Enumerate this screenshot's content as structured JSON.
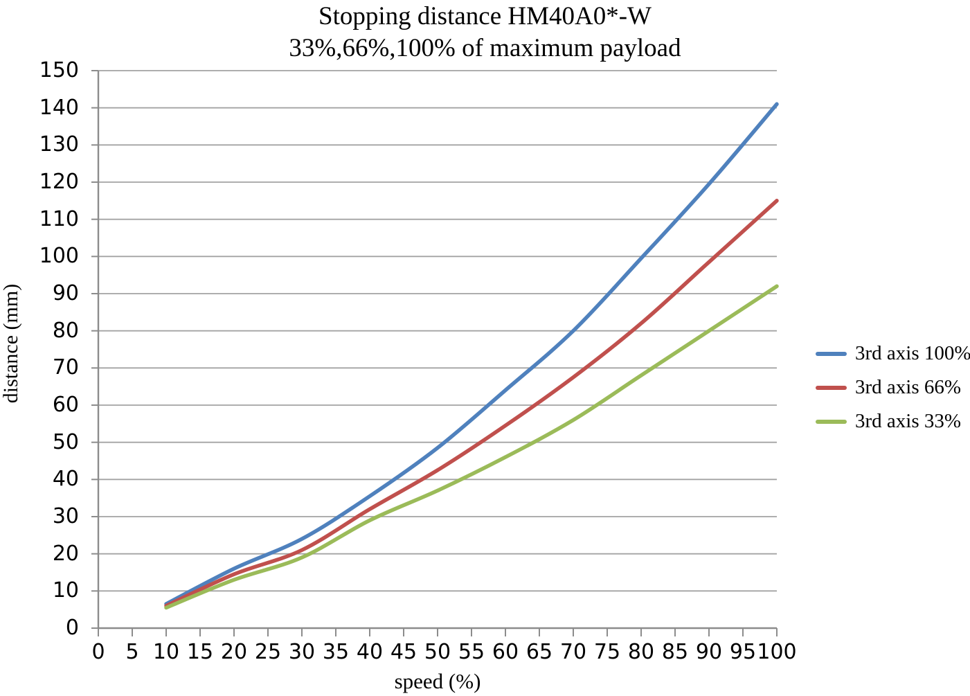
{
  "chart_data": {
    "type": "line",
    "title": "Stopping distance HM40A0*-W",
    "subtitle": "33%,66%,100% of maximum payload",
    "xlabel": "speed (%)",
    "ylabel": "distance (mm)",
    "xlim": [
      0,
      100
    ],
    "ylim": [
      0,
      150
    ],
    "x_tick_step": 5,
    "y_tick_step": 10,
    "grid": "horizontal",
    "legend_position": "right",
    "x": [
      10,
      20,
      30,
      40,
      50,
      60,
      70,
      80,
      90,
      100
    ],
    "series": [
      {
        "name": "3rd axis 100%",
        "color": "#4F81BD",
        "values": [
          6.5,
          16,
          24,
          35.5,
          48.5,
          64,
          80,
          99.5,
          119.5,
          141
        ]
      },
      {
        "name": "3rd axis 66%",
        "color": "#C0504D",
        "values": [
          6,
          14.5,
          21,
          32,
          42.5,
          54.5,
          67.5,
          82,
          98.5,
          115
        ]
      },
      {
        "name": "3rd axis 33%",
        "color": "#9BBB59",
        "values": [
          5.5,
          13,
          19,
          29,
          37,
          46,
          56,
          68,
          80,
          92
        ]
      }
    ],
    "colors": {
      "gridline": "#A3A3A3",
      "axis": "#8C8C8C",
      "text": "#000000"
    }
  }
}
